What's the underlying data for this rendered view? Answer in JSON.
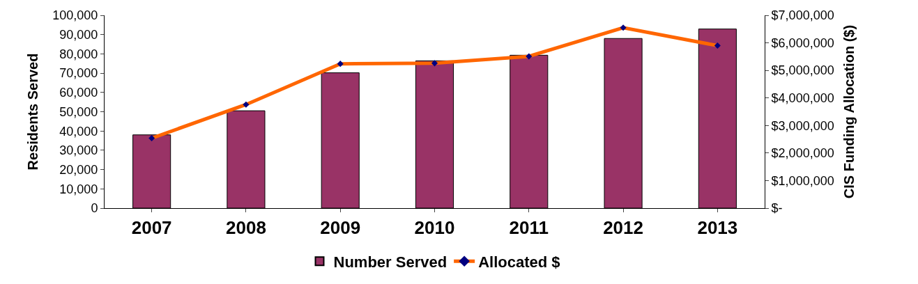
{
  "chart_data": {
    "type": "bar",
    "ylabel": "Residents Served",
    "y2label": "CIS Funding Allocation ($)",
    "categories": [
      "2007",
      "2008",
      "2009",
      "2010",
      "2011",
      "2012",
      "2013"
    ],
    "series": [
      {
        "name": "Number Served",
        "color": "#993366",
        "values": [
          38000,
          50500,
          70200,
          76400,
          79300,
          88000,
          92900
        ]
      },
      {
        "name": "Allocated $",
        "type": "line",
        "axis": "y2",
        "color": "#ff6600",
        "marker": "diamond",
        "values": [
          2540000,
          3760000,
          5240000,
          5260000,
          5510000,
          6550000,
          5900000
        ]
      }
    ],
    "ylim": [
      0,
      100000
    ],
    "yticks": [
      0,
      {
        "value": 10000,
        "label": "10,000"
      },
      {
        "value": 20000,
        "label": "20,000"
      },
      {
        "value": 30000,
        "label": "30,000"
      },
      {
        "value": 40000,
        "label": "40,000"
      },
      {
        "value": 50000,
        "label": "50,000"
      },
      {
        "value": 60000,
        "label": "60,000"
      },
      {
        "value": 70000,
        "label": "70,000"
      },
      {
        "value": 80000,
        "label": "80,000"
      },
      {
        "value": 90000,
        "label": "90,000"
      },
      {
        "value": 100000,
        "label": "100,000"
      }
    ],
    "y2lim": [
      0,
      7000000
    ],
    "y2ticks": [
      {
        "value": 0,
        "label": "$-"
      },
      {
        "value": 1000000,
        "label": "$1,000,000"
      },
      {
        "value": 2000000,
        "label": "$2,000,000"
      },
      {
        "value": 3000000,
        "label": "$3,000,000"
      },
      {
        "value": 4000000,
        "label": "$4,000,000"
      },
      {
        "value": 5000000,
        "label": "$5,000,000"
      },
      {
        "value": 6000000,
        "label": "$6,000,000"
      },
      {
        "value": 7000000,
        "label": "$7,000,000"
      }
    ],
    "legend": "bottom"
  }
}
